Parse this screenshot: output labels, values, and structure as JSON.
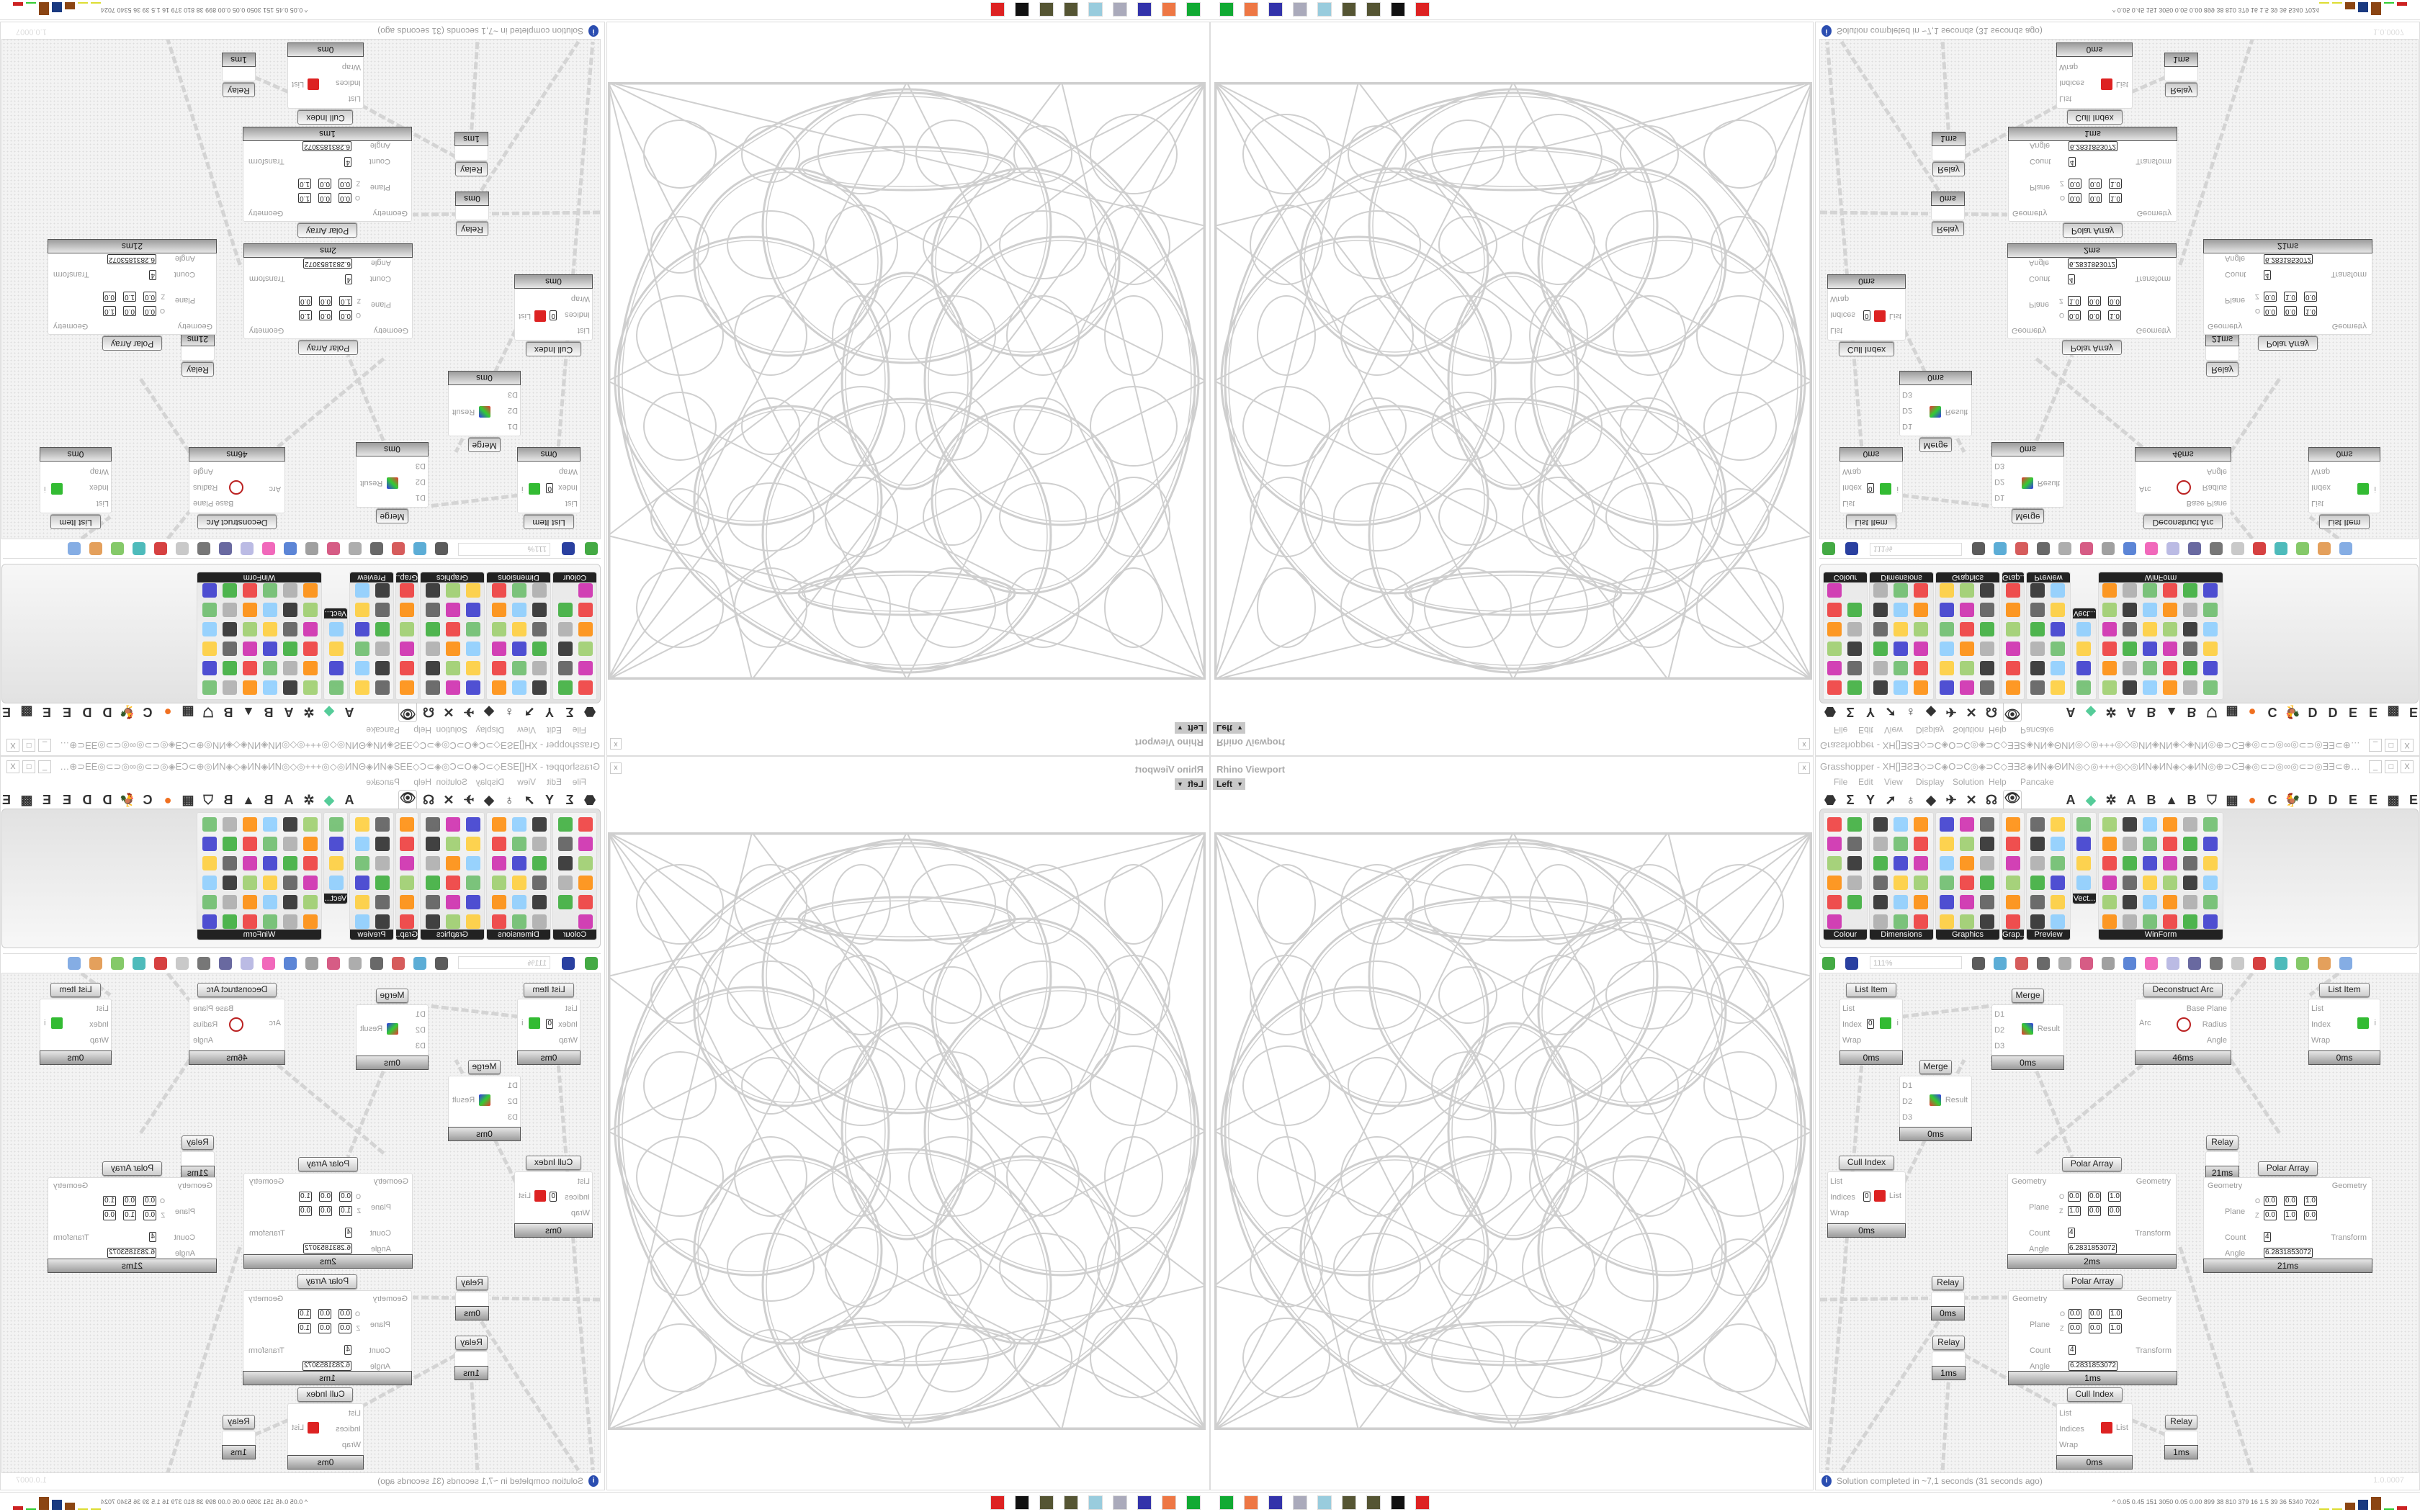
{
  "viewport": {
    "title": "Rhino Viewport",
    "view": "Left",
    "close": "x"
  },
  "grasshopper": {
    "title": "Grasshopper - XH[]ƎƧƎ◇⊃C◈O⊃C◎◈⊃C◇ƎƎƧ◈ИN◈ΘИN◎◇◎+++◎◇◎ИN◈ИN◈◇◈ИN◎⊕⊃CƎ◈◎⊂⊃◎∞◎⊂⊃◎ƎƎ⊂⊕◎ИN◈◇◈ƎƎ◈ƎƎ⊞+ƧƧ+⊞ƎƎ◈ƎƎ◈◇◈◈⊂⊃ƎƎ⊞◈+⊃C...",
    "window_buttons": [
      "_",
      "□",
      "X"
    ],
    "menu": [
      "File",
      "Edit",
      "View",
      "Display",
      "Solution",
      "Help",
      "Pancake"
    ],
    "tabs_symbols": [
      "⬣",
      "Σ",
      "Y",
      "➚",
      "♁",
      "◆",
      "✈",
      "✕",
      "☊",
      "👁"
    ],
    "tabs_letters": [
      "A",
      "◆",
      "✲",
      "A",
      "B",
      "▲",
      "B",
      "⛉",
      "▦",
      "●",
      "C",
      "🐓",
      "D",
      "D",
      "E",
      "E",
      "▩",
      "E"
    ],
    "selected_tab": "eye-icon",
    "accent_orange": "#f07020",
    "panels": [
      "Colour",
      "Dimensions",
      "Graphics",
      "Grap...",
      "Preview",
      "Vect...",
      "WinForm"
    ],
    "zoom": "111%",
    "status": "Solution completed in ~7,1 seconds (31 seconds ago)",
    "version": "1.0.0007"
  },
  "nodes": [
    {
      "title": "List Item",
      "inputs": [
        "List",
        "Index",
        "Wrap"
      ],
      "outputs": [
        "i"
      ],
      "values": [
        "0"
      ],
      "time": "0ms"
    },
    {
      "title": "Merge",
      "inputs": [
        "D1",
        "D2",
        "D3"
      ],
      "outputs": [
        "Result"
      ],
      "values": [],
      "time": "0ms"
    },
    {
      "title": "Deconstruct Arc",
      "inputs": [
        "Arc"
      ],
      "outputs": [
        "Base Plane",
        "Radius",
        "Angle"
      ],
      "values": [],
      "time": "46ms"
    },
    {
      "title": "List Item",
      "inputs": [
        "List",
        "Index",
        "Wrap"
      ],
      "outputs": [
        "i"
      ],
      "values": [],
      "time": "0ms"
    },
    {
      "title": "Merge",
      "inputs": [
        "D1",
        "D2",
        "D3"
      ],
      "outputs": [
        "Result"
      ],
      "values": [],
      "time": "0ms"
    },
    {
      "title": "Cull Index",
      "inputs": [
        "List",
        "Indices",
        "Wrap"
      ],
      "outputs": [
        "List"
      ],
      "values": [
        "0"
      ],
      "time": "0ms"
    },
    {
      "title": "Polar Array",
      "inputs": [
        "Geometry",
        "Plane",
        "Count",
        "Angle"
      ],
      "outputs": [
        "Geometry",
        "Transform"
      ],
      "plane": {
        "o": [
          "0.0",
          "0.0",
          "1.0"
        ],
        "z": [
          "1.0",
          "0.0",
          "0.0"
        ]
      },
      "count": "4",
      "angle": "6.2831853072",
      "time": "2ms"
    },
    {
      "title": "Relay",
      "inputs": [],
      "outputs": [],
      "values": [],
      "time": "21ms"
    },
    {
      "title": "Polar Array",
      "inputs": [
        "Geometry",
        "Plane",
        "Count",
        "Angle"
      ],
      "outputs": [
        "Geometry",
        "Transform"
      ],
      "plane": {
        "o": [
          "0.0",
          "0.0",
          "1.0"
        ],
        "z": [
          "0.0",
          "1.0",
          "0.0"
        ]
      },
      "count": "4",
      "angle": "6.2831853072",
      "time": "21ms"
    },
    {
      "title": "Relay",
      "inputs": [],
      "outputs": [],
      "values": [],
      "time": "0ms"
    },
    {
      "title": "Relay",
      "inputs": [],
      "outputs": [],
      "values": [],
      "time": "1ms"
    },
    {
      "title": "Polar Array",
      "inputs": [
        "Geometry",
        "Plane",
        "Count",
        "Angle"
      ],
      "outputs": [
        "Geometry",
        "Transform"
      ],
      "plane": {
        "o": [
          "0.0",
          "0.0",
          "1.0"
        ],
        "z": [
          "0.0",
          "0.0",
          "1.0"
        ]
      },
      "count": "4",
      "angle": "6.2831853072",
      "time": "1ms"
    },
    {
      "title": "Cull Index",
      "inputs": [
        "List",
        "Indices",
        "Wrap"
      ],
      "outputs": [
        "List"
      ],
      "values": [],
      "time": "0ms"
    },
    {
      "title": "Relay",
      "inputs": [],
      "outputs": [],
      "values": [],
      "time": "1ms"
    }
  ],
  "plane_labels": {
    "o": "O",
    "z": "Z",
    "x": "X",
    "y": "Y",
    "zz": "Z"
  },
  "taskbar": {
    "icons": [
      "app-launcher-icon",
      "firefox-icon",
      "floppy-64-icon",
      "scroll-icon",
      "notepad-icon",
      "pinecone-icon",
      "pinecone-icon",
      "inkscape-icon",
      "red-app-icon"
    ],
    "stats": "^  0.05 0.45  151  3050 0.05 0.00  899   38   810   379   16   1.5   39   36  5340 7024"
  }
}
